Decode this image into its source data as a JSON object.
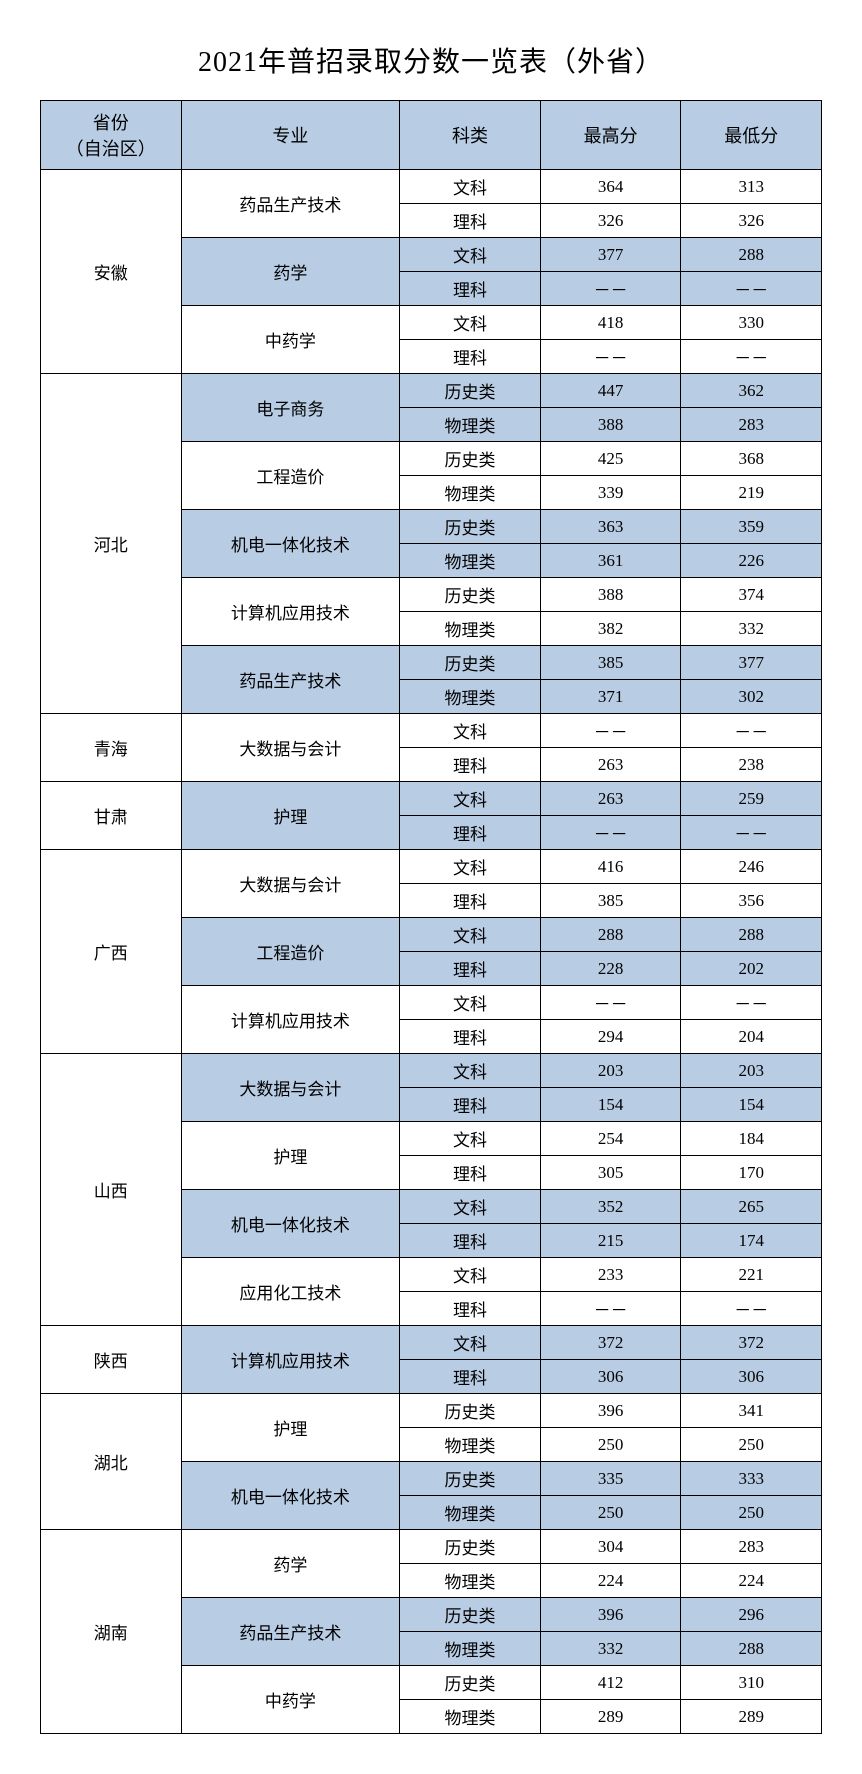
{
  "title": "2021年普招录取分数一览表（外省）",
  "colors": {
    "header_bg": "#b8cce4",
    "shaded_bg": "#b8cce4",
    "border": "#000000",
    "page_bg": "#ffffff"
  },
  "headers": {
    "province": "省份\n（自治区）",
    "major": "专业",
    "category": "科类",
    "high": "最高分",
    "low": "最低分"
  },
  "dash": "－－",
  "provinces": [
    {
      "name": "安徽",
      "majors": [
        {
          "name": "药品生产技术",
          "shaded": false,
          "rows": [
            {
              "cat": "文科",
              "high": "364",
              "low": "313"
            },
            {
              "cat": "理科",
              "high": "326",
              "low": "326"
            }
          ]
        },
        {
          "name": "药学",
          "shaded": true,
          "rows": [
            {
              "cat": "文科",
              "high": "377",
              "low": "288"
            },
            {
              "cat": "理科",
              "high": "－－",
              "low": "－－"
            }
          ]
        },
        {
          "name": "中药学",
          "shaded": false,
          "rows": [
            {
              "cat": "文科",
              "high": "418",
              "low": "330"
            },
            {
              "cat": "理科",
              "high": "－－",
              "low": "－－"
            }
          ]
        }
      ]
    },
    {
      "name": "河北",
      "majors": [
        {
          "name": "电子商务",
          "shaded": true,
          "rows": [
            {
              "cat": "历史类",
              "high": "447",
              "low": "362"
            },
            {
              "cat": "物理类",
              "high": "388",
              "low": "283"
            }
          ]
        },
        {
          "name": "工程造价",
          "shaded": false,
          "rows": [
            {
              "cat": "历史类",
              "high": "425",
              "low": "368"
            },
            {
              "cat": "物理类",
              "high": "339",
              "low": "219"
            }
          ]
        },
        {
          "name": "机电一体化技术",
          "shaded": true,
          "rows": [
            {
              "cat": "历史类",
              "high": "363",
              "low": "359"
            },
            {
              "cat": "物理类",
              "high": "361",
              "low": "226"
            }
          ]
        },
        {
          "name": "计算机应用技术",
          "shaded": false,
          "rows": [
            {
              "cat": "历史类",
              "high": "388",
              "low": "374"
            },
            {
              "cat": "物理类",
              "high": "382",
              "low": "332"
            }
          ]
        },
        {
          "name": "药品生产技术",
          "shaded": true,
          "rows": [
            {
              "cat": "历史类",
              "high": "385",
              "low": "377"
            },
            {
              "cat": "物理类",
              "high": "371",
              "low": "302"
            }
          ]
        }
      ]
    },
    {
      "name": "青海",
      "majors": [
        {
          "name": "大数据与会计",
          "shaded": false,
          "rows": [
            {
              "cat": "文科",
              "high": "－－",
              "low": "－－"
            },
            {
              "cat": "理科",
              "high": "263",
              "low": "238"
            }
          ]
        }
      ]
    },
    {
      "name": "甘肃",
      "majors": [
        {
          "name": "护理",
          "shaded": true,
          "rows": [
            {
              "cat": "文科",
              "high": "263",
              "low": "259"
            },
            {
              "cat": "理科",
              "high": "－－",
              "low": "－－"
            }
          ]
        }
      ]
    },
    {
      "name": "广西",
      "majors": [
        {
          "name": "大数据与会计",
          "shaded": false,
          "rows": [
            {
              "cat": "文科",
              "high": "416",
              "low": "246"
            },
            {
              "cat": "理科",
              "high": "385",
              "low": "356"
            }
          ]
        },
        {
          "name": "工程造价",
          "shaded": true,
          "rows": [
            {
              "cat": "文科",
              "high": "288",
              "low": "288"
            },
            {
              "cat": "理科",
              "high": "228",
              "low": "202"
            }
          ]
        },
        {
          "name": "计算机应用技术",
          "shaded": false,
          "rows": [
            {
              "cat": "文科",
              "high": "－－",
              "low": "－－"
            },
            {
              "cat": "理科",
              "high": "294",
              "low": "204"
            }
          ]
        }
      ]
    },
    {
      "name": "山西",
      "majors": [
        {
          "name": "大数据与会计",
          "shaded": true,
          "rows": [
            {
              "cat": "文科",
              "high": "203",
              "low": "203"
            },
            {
              "cat": "理科",
              "high": "154",
              "low": "154"
            }
          ]
        },
        {
          "name": "护理",
          "shaded": false,
          "rows": [
            {
              "cat": "文科",
              "high": "254",
              "low": "184"
            },
            {
              "cat": "理科",
              "high": "305",
              "low": "170"
            }
          ]
        },
        {
          "name": "机电一体化技术",
          "shaded": true,
          "rows": [
            {
              "cat": "文科",
              "high": "352",
              "low": "265"
            },
            {
              "cat": "理科",
              "high": "215",
              "low": "174"
            }
          ]
        },
        {
          "name": "应用化工技术",
          "shaded": false,
          "rows": [
            {
              "cat": "文科",
              "high": "233",
              "low": "221"
            },
            {
              "cat": "理科",
              "high": "－－",
              "low": "－－"
            }
          ]
        }
      ]
    },
    {
      "name": "陕西",
      "majors": [
        {
          "name": "计算机应用技术",
          "shaded": true,
          "rows": [
            {
              "cat": "文科",
              "high": "372",
              "low": "372"
            },
            {
              "cat": "理科",
              "high": "306",
              "low": "306"
            }
          ]
        }
      ]
    },
    {
      "name": "湖北",
      "majors": [
        {
          "name": "护理",
          "shaded": false,
          "rows": [
            {
              "cat": "历史类",
              "high": "396",
              "low": "341"
            },
            {
              "cat": "物理类",
              "high": "250",
              "low": "250"
            }
          ]
        },
        {
          "name": "机电一体化技术",
          "shaded": true,
          "rows": [
            {
              "cat": "历史类",
              "high": "335",
              "low": "333"
            },
            {
              "cat": "物理类",
              "high": "250",
              "low": "250"
            }
          ]
        }
      ]
    },
    {
      "name": "湖南",
      "majors": [
        {
          "name": "药学",
          "shaded": false,
          "rows": [
            {
              "cat": "历史类",
              "high": "304",
              "low": "283"
            },
            {
              "cat": "物理类",
              "high": "224",
              "low": "224"
            }
          ]
        },
        {
          "name": "药品生产技术",
          "shaded": true,
          "rows": [
            {
              "cat": "历史类",
              "high": "396",
              "low": "296"
            },
            {
              "cat": "物理类",
              "high": "332",
              "low": "288"
            }
          ]
        },
        {
          "name": "中药学",
          "shaded": false,
          "rows": [
            {
              "cat": "历史类",
              "high": "412",
              "low": "310"
            },
            {
              "cat": "物理类",
              "high": "289",
              "low": "289"
            }
          ]
        }
      ]
    }
  ]
}
